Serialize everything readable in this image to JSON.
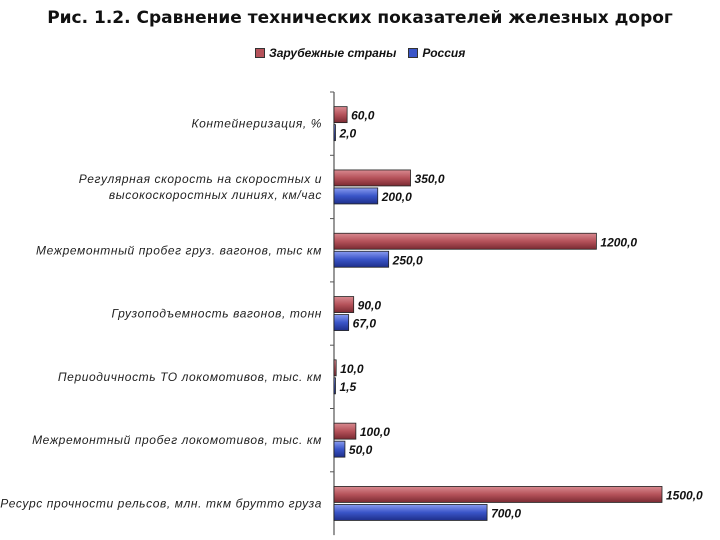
{
  "chart_data": {
    "type": "bar",
    "orientation": "horizontal",
    "title": "Рис. 1.2. Сравнение технических показателей железных дорог",
    "categories": [
      "Контейнеризация, %",
      "Регулярная скорость на скоростных и высокоскоростных линиях, км/час",
      "Межремонтный пробег груз. вагонов, тыс км",
      "Грузоподъемность вагонов, тонн",
      "Периодичность ТО локомотивов, тыс. км",
      "Межремонтный пробег локомотивов, тыс. км",
      "Ресурс прочности рельсов, млн. ткм брутто груза"
    ],
    "category_lines": [
      [
        "Контейнеризация, %"
      ],
      [
        "Регулярная скорость на скоростных и",
        "высокоскоростных линиях, км/час"
      ],
      [
        "Межремонтный пробег груз. вагонов, тыс км"
      ],
      [
        "Грузоподъемность вагонов, тонн"
      ],
      [
        "Периодичность ТО локомотивов, тыс. км"
      ],
      [
        "Межремонтный пробег локомотивов, тыс. км"
      ],
      [
        "Ресурс прочности рельсов, млн. ткм брутто груза"
      ]
    ],
    "series": [
      {
        "name": "Зарубежные страны",
        "color": "#b5525a",
        "values": [
          60,
          350,
          1200,
          90,
          10,
          100,
          1500
        ],
        "labels": [
          "60,0",
          "350,0",
          "1200,0",
          "90,0",
          "10,0",
          "100,0",
          "1500,0"
        ]
      },
      {
        "name": "Россия",
        "color": "#3a55c8",
        "values": [
          2,
          200,
          250,
          67,
          1.5,
          50,
          700
        ],
        "labels": [
          "2,0",
          "200,0",
          "250,0",
          "67,0",
          "1,5",
          "50,0",
          "700,0"
        ]
      }
    ],
    "xlim": [
      0,
      1500
    ],
    "grid": false,
    "legend_position": "top"
  }
}
